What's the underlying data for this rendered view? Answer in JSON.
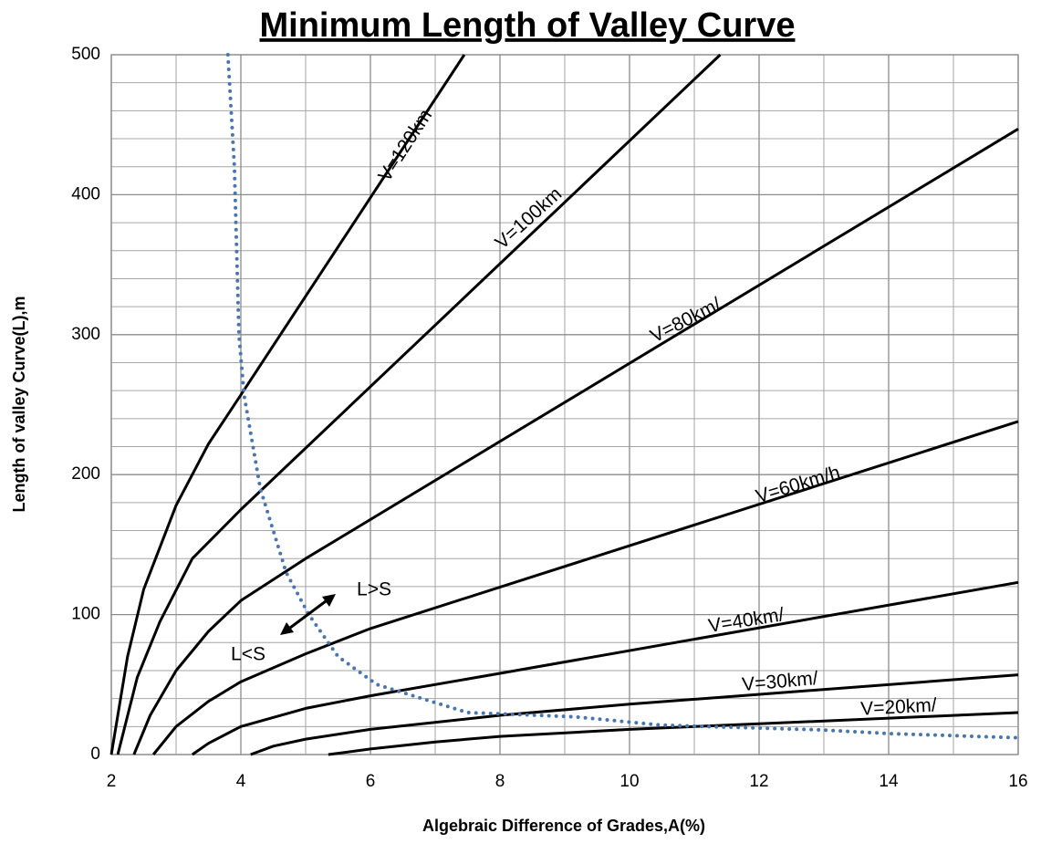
{
  "chart_data": {
    "type": "line",
    "title": "Minimum Length of Valley Curve",
    "x_label": "Algebraic Difference of Grades,A(%)",
    "y_label": "Length of valley Curve(L),m",
    "xlim": [
      2,
      16
    ],
    "ylim": [
      0,
      500
    ],
    "xticks": [
      2,
      4,
      6,
      8,
      10,
      12,
      14,
      16
    ],
    "yticks": [
      0,
      100,
      200,
      300,
      400,
      500
    ],
    "xminorticks": [
      3,
      5,
      7,
      9,
      11,
      13,
      15
    ],
    "yminorticks": [
      20,
      40,
      60,
      80,
      120,
      140,
      160,
      180,
      220,
      240,
      260,
      280,
      320,
      340,
      360,
      380,
      420,
      440,
      460,
      480
    ],
    "grid": true,
    "series": [
      {
        "color": "#000000",
        "x": [
          2.0,
          2.25,
          2.5,
          3,
          3.5,
          4,
          7.45
        ],
        "values": [
          0,
          70,
          118,
          178,
          222,
          257,
          500
        ]
      },
      {
        "color": "#000000",
        "x": [
          2.1,
          2.4,
          2.75,
          3.25,
          4,
          11.4
        ],
        "values": [
          0,
          55,
          95,
          140,
          175,
          500
        ]
      },
      {
        "color": "#000000",
        "x": [
          2.35,
          2.6,
          3,
          3.5,
          4,
          5,
          16
        ],
        "values": [
          0,
          28,
          60,
          88,
          110,
          140,
          447
        ]
      },
      {
        "color": "#000000",
        "x": [
          2.65,
          3,
          3.5,
          4,
          5,
          6,
          16
        ],
        "values": [
          0,
          20,
          38,
          52,
          72,
          90,
          238
        ]
      },
      {
        "color": "#000000",
        "x": [
          3.25,
          3.5,
          4,
          5,
          6,
          8,
          16
        ],
        "values": [
          0,
          8,
          20,
          33,
          42,
          58,
          123
        ]
      },
      {
        "color": "#000000",
        "x": [
          4.15,
          4.5,
          5,
          6,
          8,
          10,
          16
        ],
        "values": [
          0,
          6,
          11,
          18,
          28,
          36,
          57
        ]
      },
      {
        "color": "#000000",
        "x": [
          5.35,
          6,
          7,
          8,
          10,
          12,
          16
        ],
        "values": [
          0,
          4,
          9,
          13,
          18,
          22,
          30
        ]
      },
      {
        "color": "#4a76b0",
        "dotted": true,
        "x": [
          3.8,
          3.9,
          3.97,
          4.05,
          4.3,
          4.7,
          5.05,
          5.5,
          6.1,
          7.5,
          9.15,
          10.5,
          12.96,
          14,
          16
        ],
        "values": [
          500,
          420,
          300,
          257,
          190,
          130,
          100,
          70,
          50,
          30,
          27,
          21,
          17.6,
          15,
          12
        ]
      }
    ],
    "annotations": [
      "V=120km",
      "V=100km",
      "V=80km/",
      "V=60km/h",
      "V=40km/",
      "V=30km/",
      "V=20km/",
      "L>S",
      "L<S"
    ]
  }
}
